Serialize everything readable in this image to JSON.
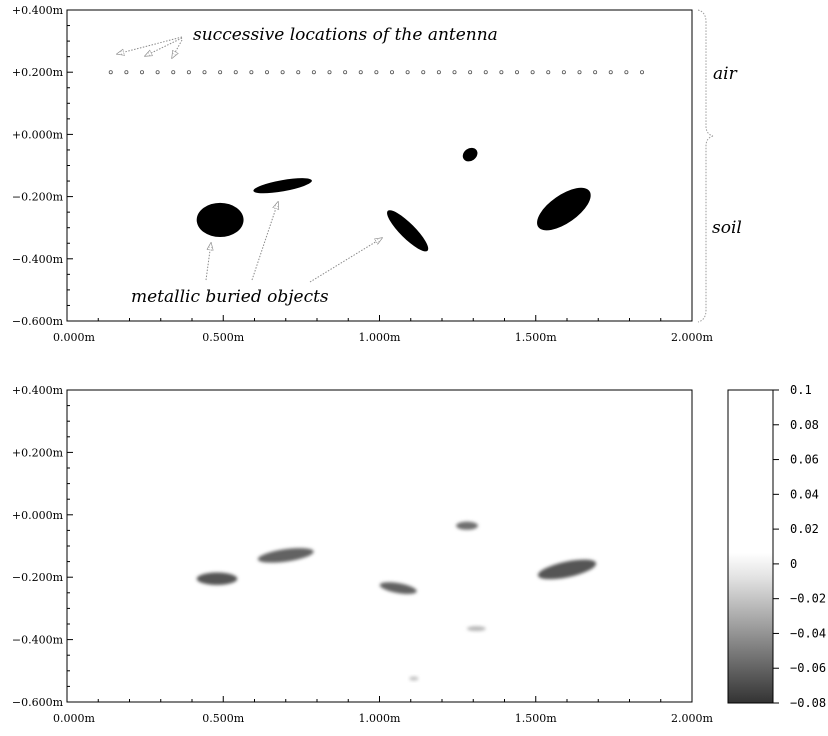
{
  "chart_data": [
    {
      "type": "scatter",
      "title": "",
      "xlabel": "",
      "ylabel": "",
      "xlim": [
        0.0,
        2.0
      ],
      "ylim": [
        -0.6,
        0.4
      ],
      "x_ticks": [
        "0.000m",
        "0.500m",
        "1.000m",
        "1.500m",
        "2.000m"
      ],
      "x_tick_values": [
        0.0,
        0.5,
        1.0,
        1.5,
        2.0
      ],
      "y_ticks": [
        "+0.400m",
        "+0.200m",
        "+0.000m",
        "−0.200m",
        "−0.400m",
        "−0.600m"
      ],
      "y_tick_values": [
        0.4,
        0.2,
        0.0,
        -0.2,
        -0.4,
        -0.6
      ],
      "antenna_y": 0.2,
      "antenna_x": [
        0.14,
        0.19,
        0.24,
        0.29,
        0.34,
        0.39,
        0.44,
        0.49,
        0.54,
        0.59,
        0.64,
        0.69,
        0.74,
        0.79,
        0.84,
        0.89,
        0.94,
        0.99,
        1.04,
        1.09,
        1.14,
        1.19,
        1.24,
        1.29,
        1.34,
        1.39,
        1.44,
        1.49,
        1.54,
        1.59,
        1.64,
        1.69,
        1.74,
        1.79,
        1.84
      ],
      "objects": [
        {
          "cx": 0.49,
          "cy": -0.275,
          "rx": 0.075,
          "ry": 0.055,
          "angle_deg": 0
        },
        {
          "cx": 0.69,
          "cy": -0.165,
          "rx": 0.095,
          "ry": 0.018,
          "angle_deg": -10
        },
        {
          "cx": 1.29,
          "cy": -0.065,
          "rx": 0.025,
          "ry": 0.02,
          "angle_deg": -35
        },
        {
          "cx": 1.09,
          "cy": -0.31,
          "rx": 0.09,
          "ry": 0.024,
          "angle_deg": 45
        },
        {
          "cx": 1.59,
          "cy": -0.24,
          "rx": 0.1,
          "ry": 0.045,
          "angle_deg": -35
        }
      ],
      "annotations": {
        "antenna": "successive locations of the antenna",
        "objects": "metallic buried objects",
        "air": "air",
        "soil": "soil"
      }
    },
    {
      "type": "heatmap",
      "title": "",
      "xlabel": "",
      "ylabel": "",
      "xlim": [
        0.0,
        2.0
      ],
      "ylim": [
        -0.6,
        0.4
      ],
      "x_ticks": [
        "0.000m",
        "0.500m",
        "1.000m",
        "1.500m",
        "2.000m"
      ],
      "x_tick_values": [
        0.0,
        0.5,
        1.0,
        1.5,
        2.0
      ],
      "y_ticks": [
        "+0.400m",
        "+0.200m",
        "+0.000m",
        "−0.200m",
        "−0.400m",
        "−0.600m"
      ],
      "y_tick_values": [
        0.4,
        0.2,
        0.0,
        -0.2,
        -0.4,
        -0.6
      ],
      "colorbar": {
        "range": [
          -0.08,
          0.1
        ],
        "ticks": [
          "0.1",
          "0.08",
          "0.06",
          "0.04",
          "0.02",
          "0",
          "−0.02",
          "−0.04",
          "−0.06",
          "−0.08"
        ],
        "tick_values": [
          0.1,
          0.08,
          0.06,
          0.04,
          0.02,
          0,
          -0.02,
          -0.04,
          -0.06,
          -0.08
        ]
      },
      "blobs": [
        {
          "cx": 0.48,
          "cy": -0.205,
          "rx": 0.065,
          "ry": 0.02,
          "angle_deg": 0,
          "value": -0.06
        },
        {
          "cx": 0.7,
          "cy": -0.13,
          "rx": 0.09,
          "ry": 0.02,
          "angle_deg": -8,
          "value": -0.055
        },
        {
          "cx": 1.28,
          "cy": -0.035,
          "rx": 0.035,
          "ry": 0.013,
          "angle_deg": 0,
          "value": -0.05
        },
        {
          "cx": 1.06,
          "cy": -0.235,
          "rx": 0.06,
          "ry": 0.016,
          "angle_deg": 10,
          "value": -0.055
        },
        {
          "cx": 1.6,
          "cy": -0.175,
          "rx": 0.095,
          "ry": 0.025,
          "angle_deg": -12,
          "value": -0.06
        },
        {
          "cx": 1.31,
          "cy": -0.365,
          "rx": 0.03,
          "ry": 0.008,
          "angle_deg": 0,
          "value": -0.02
        },
        {
          "cx": 1.11,
          "cy": -0.525,
          "rx": 0.015,
          "ry": 0.007,
          "angle_deg": 0,
          "value": -0.015
        }
      ]
    }
  ]
}
